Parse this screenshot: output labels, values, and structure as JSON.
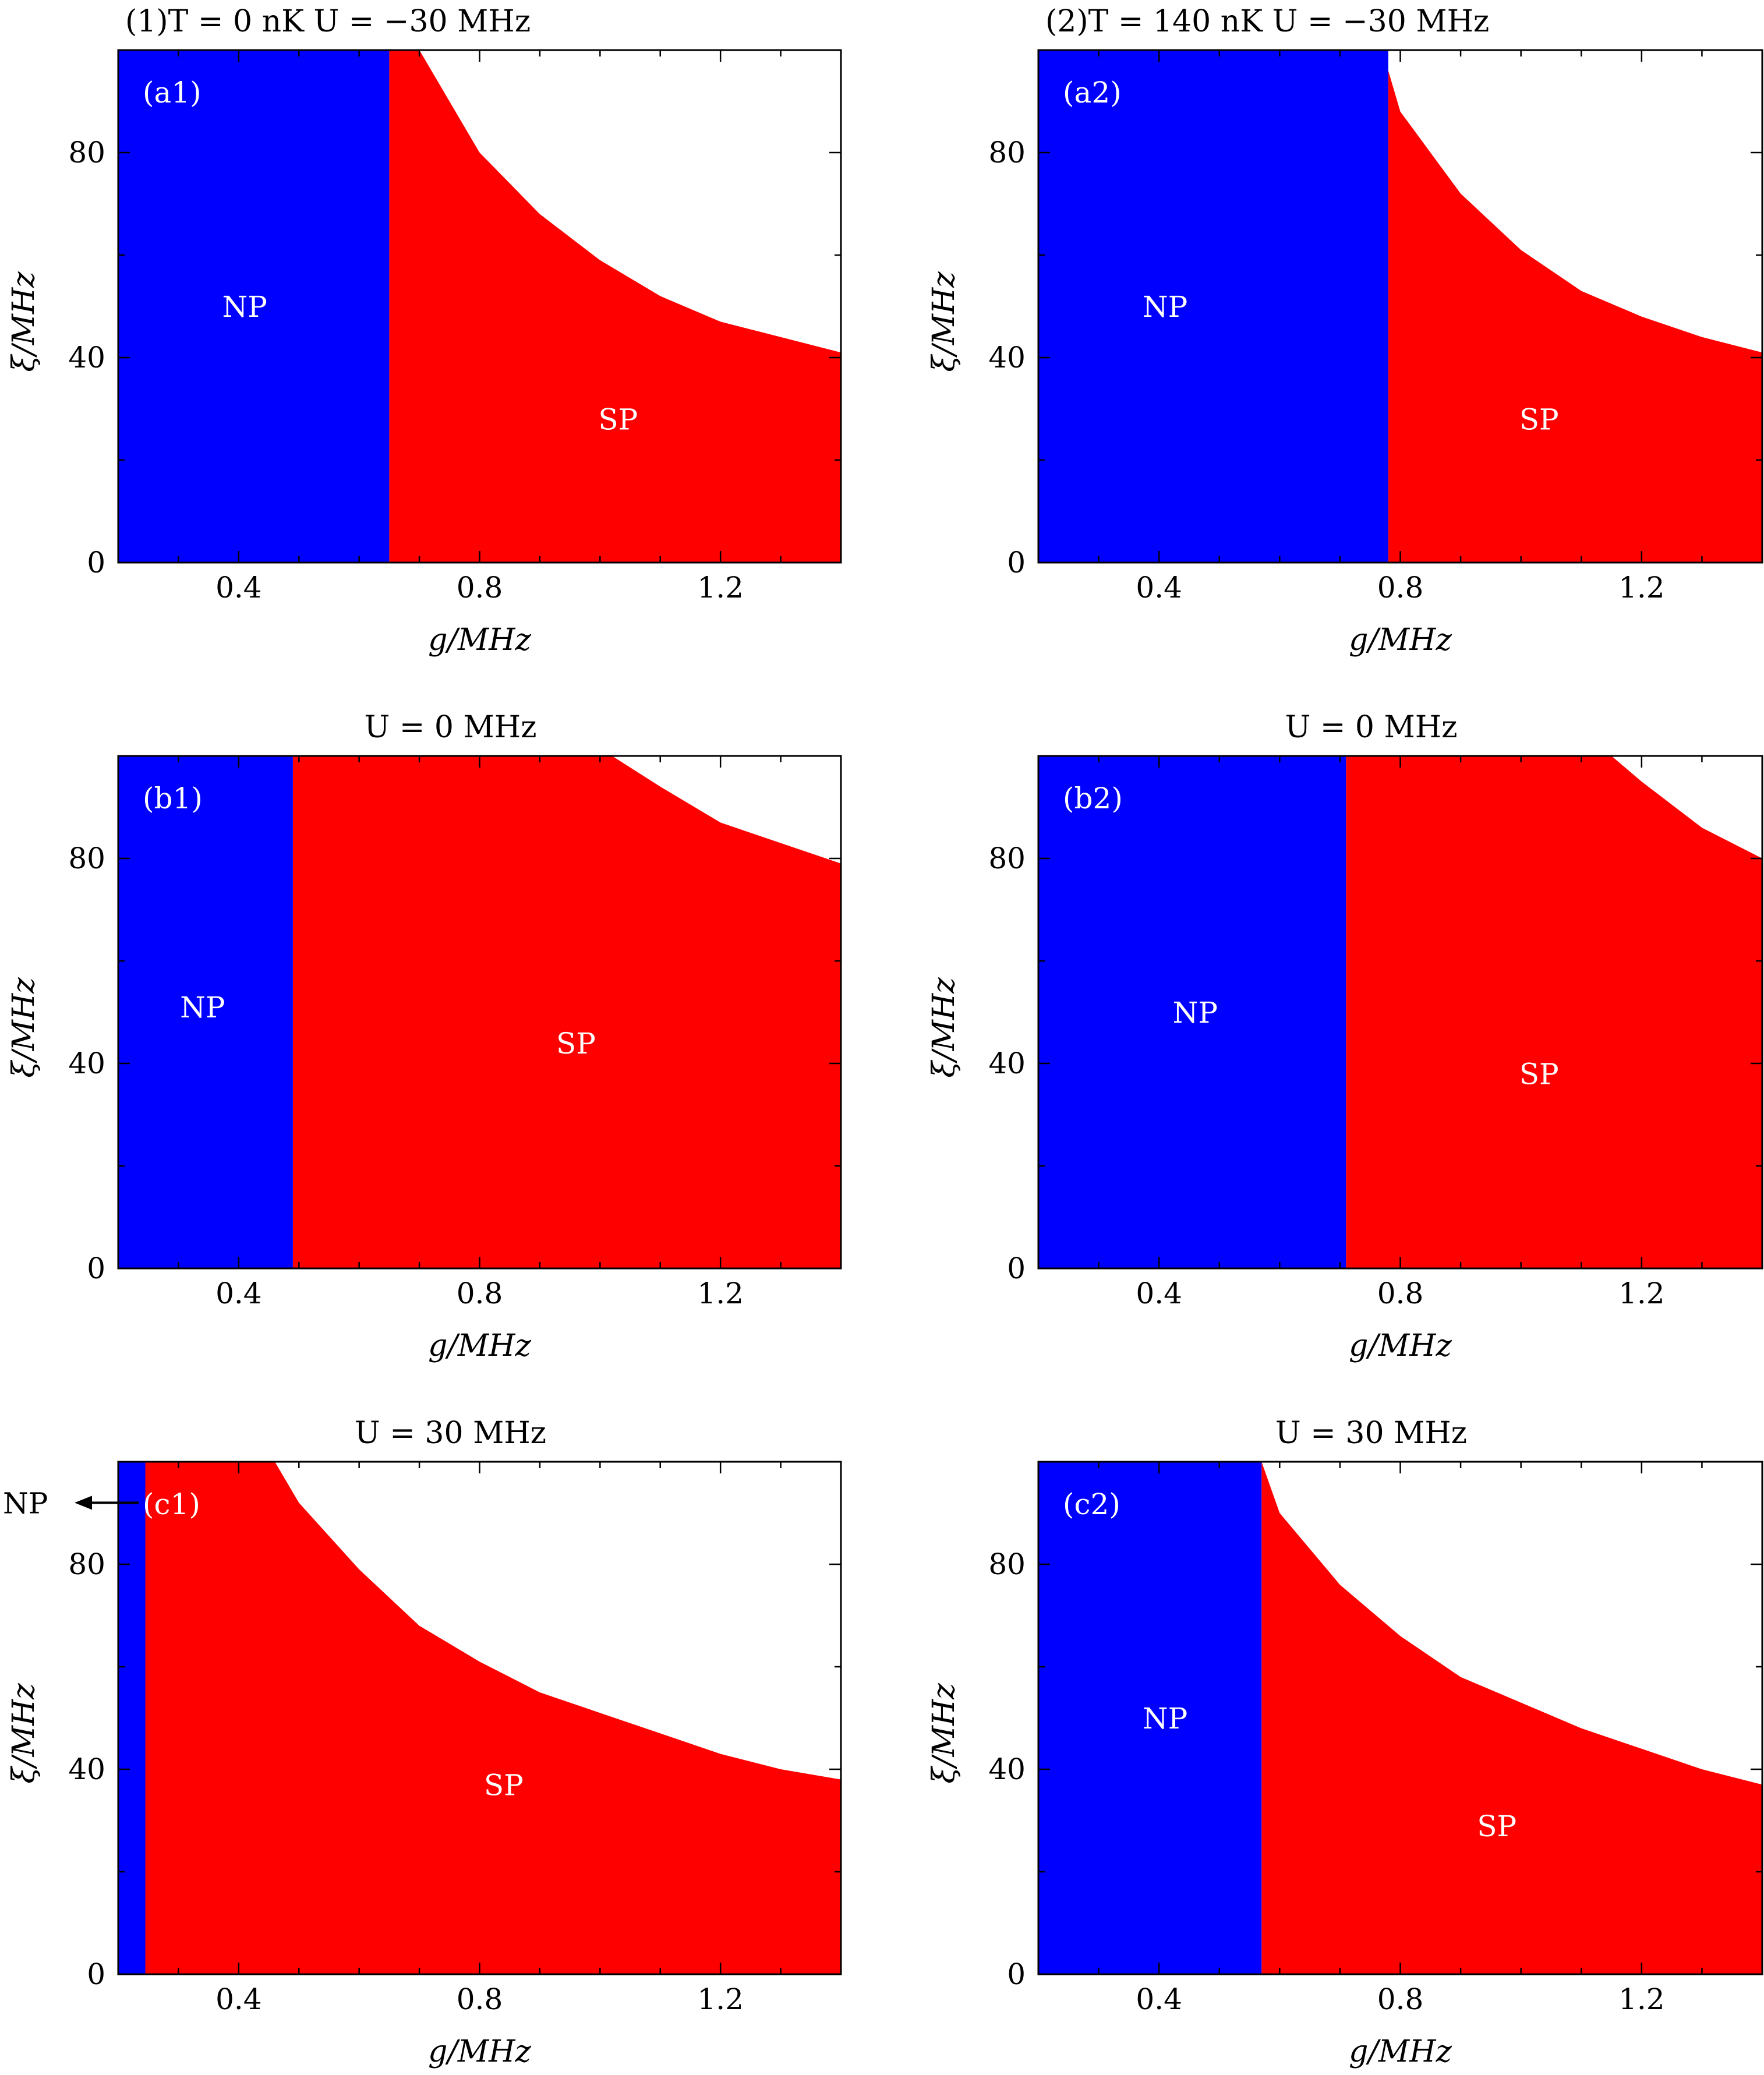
{
  "colors": {
    "NP": "#0000ff",
    "SP": "#ff0000",
    "empty": "#ffffff",
    "frame": "#000000"
  },
  "chart_data": [
    {
      "id": "a1",
      "type": "heatmap",
      "panel_label": "(a1)",
      "title": "(1)T = 0 nK   U = −30 MHz",
      "xlabel": "g/MHz",
      "ylabel": "ξ/MHz",
      "xlim": [
        0.2,
        1.4
      ],
      "ylim": [
        0,
        100
      ],
      "xticks": [
        0.4,
        0.8,
        1.2
      ],
      "xtick_labels": [
        "0.4",
        "0.8",
        "1.2"
      ],
      "yticks": [
        0,
        40,
        80
      ],
      "ytick_labels": [
        "0",
        "40",
        "80"
      ],
      "np_sp_boundary_g": 0.65,
      "sp_upper_boundary": [
        [
          0.7,
          100
        ],
        [
          0.8,
          80
        ],
        [
          0.9,
          68
        ],
        [
          1.0,
          59
        ],
        [
          1.1,
          52
        ],
        [
          1.2,
          47
        ],
        [
          1.3,
          44
        ],
        [
          1.4,
          41
        ]
      ],
      "regions": [
        {
          "name": "NP",
          "label_at": [
            0.41,
            50
          ]
        },
        {
          "name": "SP",
          "label_at": [
            1.03,
            28
          ]
        }
      ]
    },
    {
      "id": "a2",
      "type": "heatmap",
      "panel_label": "(a2)",
      "title": "(2)T = 140 nK     U = −30 MHz",
      "xlabel": "g/MHz",
      "ylabel": "ξ/MHz",
      "xlim": [
        0.2,
        1.4
      ],
      "ylim": [
        0,
        100
      ],
      "xticks": [
        0.4,
        0.8,
        1.2
      ],
      "xtick_labels": [
        "0.4",
        "0.8",
        "1.2"
      ],
      "yticks": [
        0,
        40,
        80
      ],
      "ytick_labels": [
        "0",
        "40",
        "80"
      ],
      "np_sp_boundary_g": 0.78,
      "sp_upper_boundary": [
        [
          0.78,
          96
        ],
        [
          0.8,
          88
        ],
        [
          0.9,
          72
        ],
        [
          1.0,
          61
        ],
        [
          1.1,
          53
        ],
        [
          1.2,
          48
        ],
        [
          1.3,
          44
        ],
        [
          1.4,
          41
        ]
      ],
      "regions": [
        {
          "name": "NP",
          "label_at": [
            0.41,
            50
          ]
        },
        {
          "name": "SP",
          "label_at": [
            1.03,
            28
          ]
        }
      ]
    },
    {
      "id": "b1",
      "type": "heatmap",
      "panel_label": "(b1)",
      "title": "U = 0 MHz",
      "xlabel": "g/MHz",
      "ylabel": "ξ/MHz",
      "xlim": [
        0.2,
        1.4
      ],
      "ylim": [
        0,
        100
      ],
      "xticks": [
        0.4,
        0.8,
        1.2
      ],
      "xtick_labels": [
        "0.4",
        "0.8",
        "1.2"
      ],
      "yticks": [
        0,
        40,
        80
      ],
      "ytick_labels": [
        "0",
        "40",
        "80"
      ],
      "np_sp_boundary_g": 0.49,
      "sp_upper_boundary": [
        [
          1.02,
          100
        ],
        [
          1.1,
          94
        ],
        [
          1.2,
          87
        ],
        [
          1.3,
          83
        ],
        [
          1.4,
          79
        ]
      ],
      "regions": [
        {
          "name": "NP",
          "label_at": [
            0.34,
            51
          ]
        },
        {
          "name": "SP",
          "label_at": [
            0.96,
            44
          ]
        }
      ]
    },
    {
      "id": "b2",
      "type": "heatmap",
      "panel_label": "(b2)",
      "title": "U = 0 MHz",
      "xlabel": "g/MHz",
      "ylabel": "ξ/MHz",
      "xlim": [
        0.2,
        1.4
      ],
      "ylim": [
        0,
        100
      ],
      "xticks": [
        0.4,
        0.8,
        1.2
      ],
      "xtick_labels": [
        "0.4",
        "0.8",
        "1.2"
      ],
      "yticks": [
        0,
        40,
        80
      ],
      "ytick_labels": [
        "0",
        "40",
        "80"
      ],
      "np_sp_boundary_g": 0.71,
      "sp_upper_boundary": [
        [
          1.15,
          100
        ],
        [
          1.2,
          95
        ],
        [
          1.3,
          86
        ],
        [
          1.4,
          80
        ]
      ],
      "regions": [
        {
          "name": "NP",
          "label_at": [
            0.46,
            50
          ]
        },
        {
          "name": "SP",
          "label_at": [
            1.03,
            38
          ]
        }
      ]
    },
    {
      "id": "c1",
      "type": "heatmap",
      "panel_label": "(c1)",
      "title": "U = 30 MHz",
      "xlabel": "g/MHz",
      "ylabel": "ξ/MHz",
      "xlim": [
        0.2,
        1.4
      ],
      "ylim": [
        0,
        100
      ],
      "xticks": [
        0.4,
        0.8,
        1.2
      ],
      "xtick_labels": [
        "0.4",
        "0.8",
        "1.2"
      ],
      "yticks": [
        0,
        40,
        80
      ],
      "ytick_labels": [
        "0",
        "40",
        "80"
      ],
      "np_sp_boundary_g": 0.245,
      "sp_upper_boundary": [
        [
          0.46,
          100
        ],
        [
          0.5,
          92
        ],
        [
          0.6,
          79
        ],
        [
          0.7,
          68
        ],
        [
          0.8,
          61
        ],
        [
          0.9,
          55
        ],
        [
          1.0,
          51
        ],
        [
          1.1,
          47
        ],
        [
          1.2,
          43
        ],
        [
          1.3,
          40
        ],
        [
          1.4,
          38
        ]
      ],
      "regions": [
        {
          "name": "SP",
          "label_at": [
            0.84,
            37
          ]
        }
      ],
      "side_annotation": {
        "text": "NP",
        "points_to": [
          0.2,
          92
        ]
      }
    },
    {
      "id": "c2",
      "type": "heatmap",
      "panel_label": "(c2)",
      "title": "U = 30 MHz",
      "xlabel": "g/MHz",
      "ylabel": "ξ/MHz",
      "xlim": [
        0.2,
        1.4
      ],
      "ylim": [
        0,
        100
      ],
      "xticks": [
        0.4,
        0.8,
        1.2
      ],
      "xtick_labels": [
        "0.4",
        "0.8",
        "1.2"
      ],
      "yticks": [
        0,
        40,
        80
      ],
      "ytick_labels": [
        "0",
        "40",
        "80"
      ],
      "np_sp_boundary_g": 0.57,
      "sp_upper_boundary": [
        [
          0.57,
          100
        ],
        [
          0.6,
          90
        ],
        [
          0.7,
          76
        ],
        [
          0.8,
          66
        ],
        [
          0.9,
          58
        ],
        [
          1.0,
          53
        ],
        [
          1.1,
          48
        ],
        [
          1.2,
          44
        ],
        [
          1.3,
          40
        ],
        [
          1.4,
          37
        ]
      ],
      "regions": [
        {
          "name": "NP",
          "label_at": [
            0.41,
            50
          ]
        },
        {
          "name": "SP",
          "label_at": [
            0.96,
            29
          ]
        }
      ]
    }
  ]
}
